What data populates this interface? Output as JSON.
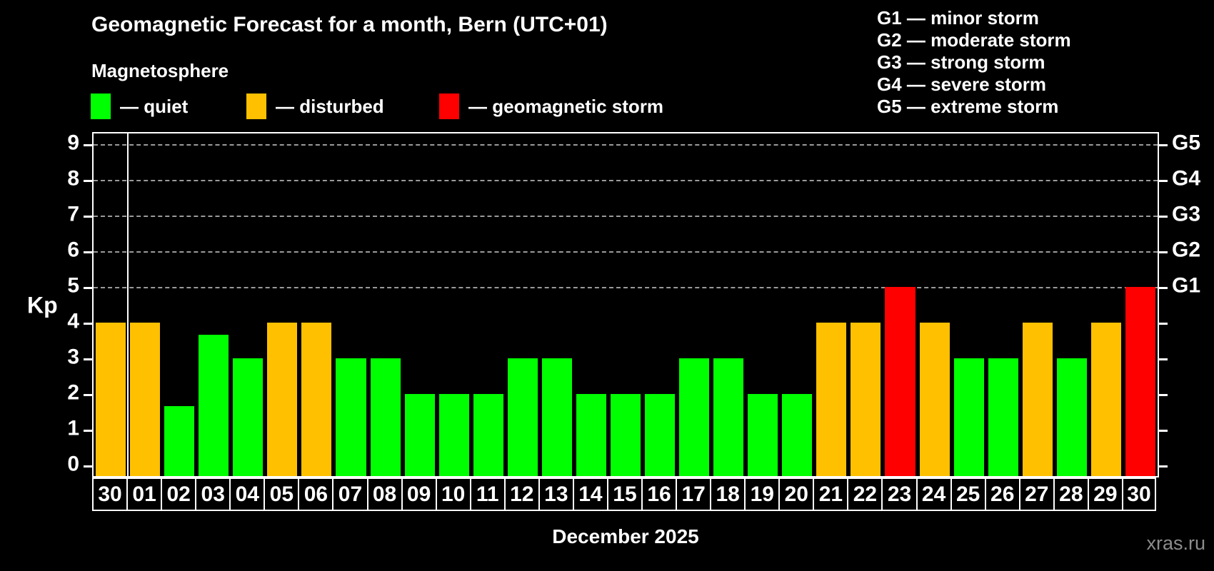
{
  "title": "Geomagnetic Forecast for a month, Bern (UTC+01)",
  "subtitle": "Magnetosphere",
  "legend": {
    "items": [
      {
        "kind": "quiet",
        "label": "— quiet",
        "color": "#00ff00"
      },
      {
        "kind": "disturbed",
        "label": "— disturbed",
        "color": "#ffc000"
      },
      {
        "kind": "storm",
        "label": "— geomagnetic storm",
        "color": "#ff0000"
      }
    ]
  },
  "g_scale_legend": {
    "items": [
      "G1 — minor storm",
      "G2 — moderate storm",
      "G3 — strong storm",
      "G4 — severe storm",
      "G5 — extreme storm"
    ]
  },
  "chart_data": {
    "type": "bar",
    "title": "Geomagnetic Forecast for a month, Bern (UTC+01)",
    "ylabel": "Kp",
    "ylim": [
      0,
      9
    ],
    "y_ticks": [
      0,
      1,
      2,
      3,
      4,
      5,
      6,
      7,
      8,
      9
    ],
    "gridlines_at": [
      5,
      6,
      7,
      8,
      9
    ],
    "grid_style": "dashed",
    "legend_position": "top-left",
    "right_axis_labels": [
      {
        "kp": 5,
        "label": "G1"
      },
      {
        "kp": 6,
        "label": "G2"
      },
      {
        "kp": 7,
        "label": "G3"
      },
      {
        "kp": 8,
        "label": "G4"
      },
      {
        "kp": 9,
        "label": "G5"
      }
    ],
    "categories": [
      "30",
      "01",
      "02",
      "03",
      "04",
      "05",
      "06",
      "07",
      "08",
      "09",
      "10",
      "11",
      "12",
      "13",
      "14",
      "15",
      "16",
      "17",
      "18",
      "19",
      "20",
      "21",
      "22",
      "23",
      "24",
      "25",
      "26",
      "27",
      "28",
      "29",
      "30"
    ],
    "values": [
      4,
      4,
      1.67,
      3.67,
      3,
      4,
      4,
      3,
      3,
      2,
      2,
      2,
      3,
      3,
      2,
      2,
      2,
      3,
      3,
      2,
      2,
      4,
      4,
      5,
      4,
      3,
      3,
      4,
      3,
      4,
      5
    ],
    "kinds": [
      "disturbed",
      "disturbed",
      "quiet",
      "quiet",
      "quiet",
      "disturbed",
      "disturbed",
      "quiet",
      "quiet",
      "quiet",
      "quiet",
      "quiet",
      "quiet",
      "quiet",
      "quiet",
      "quiet",
      "quiet",
      "quiet",
      "quiet",
      "quiet",
      "quiet",
      "disturbed",
      "disturbed",
      "storm",
      "disturbed",
      "quiet",
      "quiet",
      "disturbed",
      "quiet",
      "disturbed",
      "storm"
    ],
    "month_separator_after_index": 0,
    "caption": "December 2025"
  },
  "colors": {
    "quiet": "#00ff00",
    "disturbed": "#ffc000",
    "storm": "#ff0000",
    "grid": "#9a9a9a",
    "axis": "#ffffff",
    "background": "#000000",
    "watermark": "#8c8c8c"
  },
  "watermark": "xras.ru"
}
